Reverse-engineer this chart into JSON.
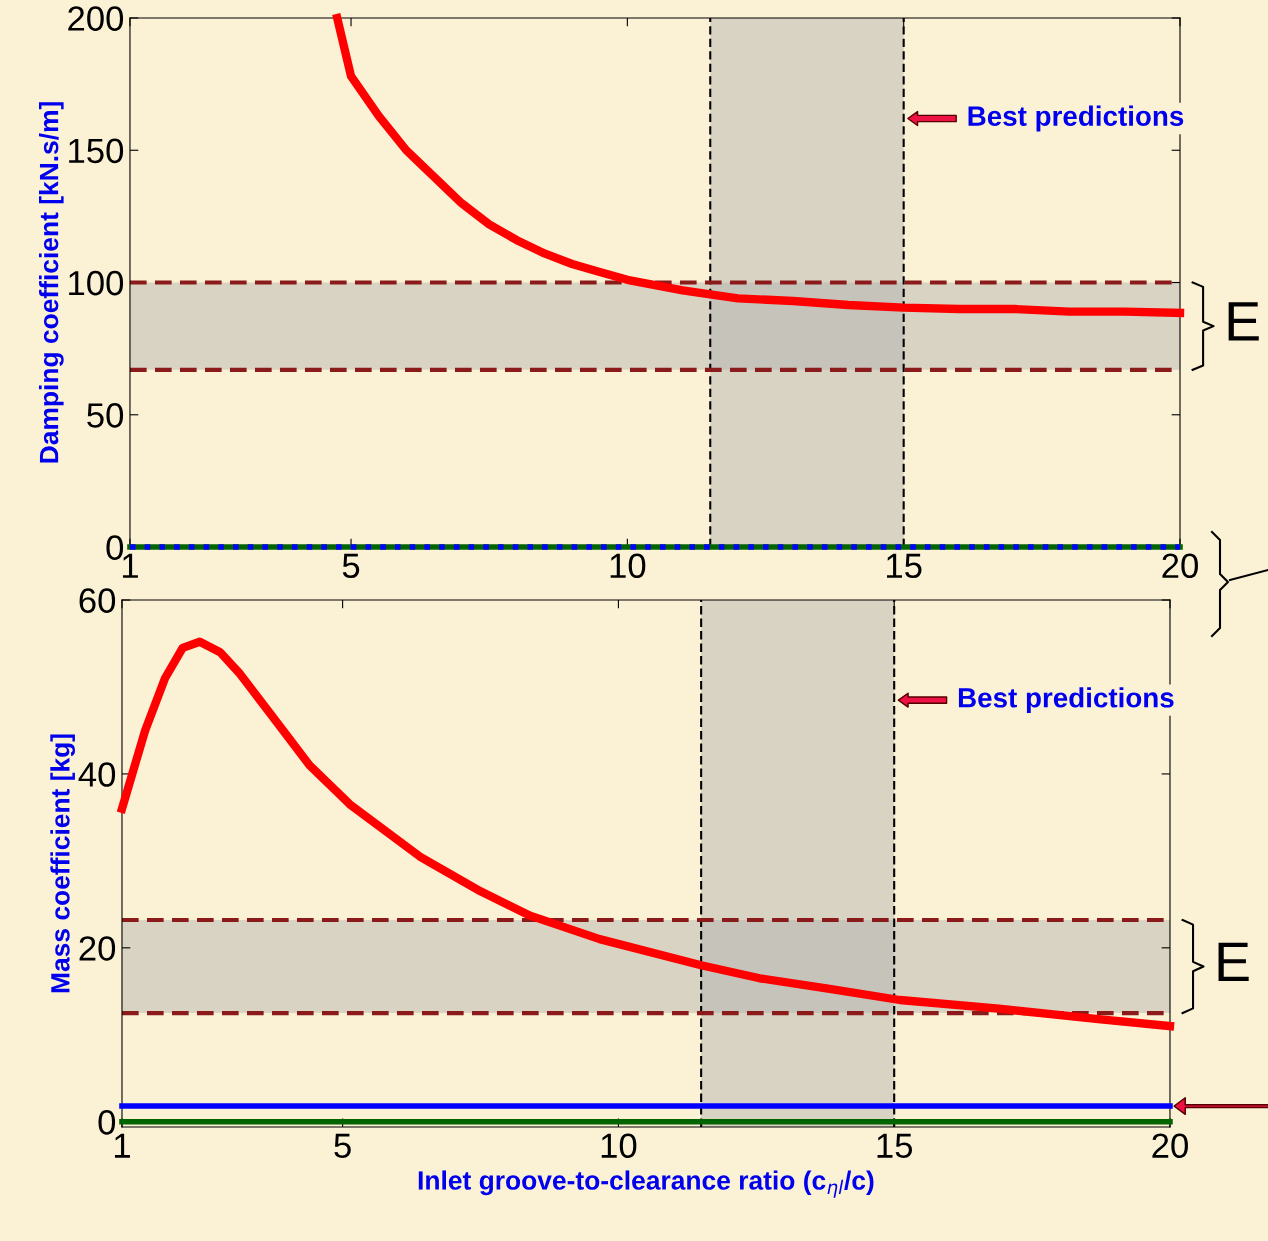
{
  "chart_data": [
    {
      "type": "line",
      "ylabel": "Damping coefficient [kN.s/m]",
      "xlim": [
        1,
        20
      ],
      "ylim": [
        0,
        200
      ],
      "xticks": [
        1,
        5,
        10,
        15,
        20
      ],
      "yticks": [
        0,
        50,
        100,
        150,
        200
      ],
      "grid": false,
      "legend": false,
      "series": [
        {
          "color": "#ff0000",
          "x": [
            4.75,
            5,
            5.5,
            6,
            6.5,
            7,
            7.5,
            8,
            8.5,
            9,
            9.5,
            10,
            11,
            12,
            13,
            14,
            15,
            16,
            17,
            18,
            19,
            20
          ],
          "values": [
            200,
            178,
            163,
            150,
            140,
            130,
            122,
            116,
            111,
            107,
            104,
            101,
            97,
            94,
            93,
            91.5,
            90.5,
            90,
            90,
            89,
            89,
            88.5
          ]
        },
        {
          "color": "#006400",
          "x": [
            1,
            20
          ],
          "values": [
            0,
            0
          ]
        },
        {
          "color": "#0000ff",
          "x": [
            1,
            20
          ],
          "values": [
            0,
            0
          ],
          "line_style": "dotted"
        }
      ],
      "bands": [
        {
          "axis": "x",
          "from": 11.5,
          "to": 15,
          "color": "#b0b0b0"
        },
        {
          "axis": "y",
          "from": 67,
          "to": 100,
          "color": "#b0b0b0"
        }
      ],
      "ref_lines": [
        {
          "axis": "x",
          "value": 11.5,
          "color": "#000000",
          "line_style": "dashed"
        },
        {
          "axis": "x",
          "value": 15,
          "color": "#000000",
          "line_style": "dashed"
        },
        {
          "axis": "y",
          "value": 67,
          "color": "#8b1a1a",
          "line_style": "dashed"
        },
        {
          "axis": "y",
          "value": 100,
          "color": "#8b1a1a",
          "line_style": "dashed"
        }
      ],
      "annotations": [
        "Best predictions",
        "E"
      ]
    },
    {
      "type": "line",
      "xlabel": "Inlet groove-to-clearance ratio (c$_{ηl}$/c)",
      "ylabel": "Mass coefficient [kg]",
      "xlim": [
        1,
        20
      ],
      "ylim": [
        -0.6,
        60
      ],
      "xticks": [
        1,
        5,
        10,
        15,
        20
      ],
      "yticks": [
        0,
        20,
        40,
        60
      ],
      "grid": false,
      "legend": false,
      "series": [
        {
          "color": "#ff0000",
          "x": [
            1,
            1.42,
            1.78,
            2.1,
            2.41,
            2.78,
            3.14,
            3.68,
            4.4,
            5.13,
            6.4,
            7.5,
            8.4,
            9.66,
            11.5,
            12.56,
            13.8,
            15.1,
            16.9,
            18.7,
            20
          ],
          "values": [
            36,
            45,
            51,
            54.5,
            55.2,
            54,
            51.5,
            47,
            41,
            36.5,
            30.5,
            26.5,
            23.7,
            21,
            18,
            16.5,
            15.3,
            14,
            13,
            11.8,
            11
          ]
        },
        {
          "color": "#006400",
          "x": [
            1,
            20
          ],
          "values": [
            0,
            0
          ]
        },
        {
          "color": "#0000ff",
          "x": [
            1,
            20
          ],
          "values": [
            1.8,
            1.8
          ]
        }
      ],
      "bands": [
        {
          "axis": "x",
          "from": 11.5,
          "to": 15,
          "color": "#b0b0b0"
        },
        {
          "axis": "y",
          "from": 12.5,
          "to": 23.2,
          "color": "#b0b0b0"
        }
      ],
      "ref_lines": [
        {
          "axis": "x",
          "value": 11.5,
          "color": "#000000",
          "line_style": "dashed"
        },
        {
          "axis": "x",
          "value": 15,
          "color": "#000000",
          "line_style": "dashed"
        },
        {
          "axis": "y",
          "value": 12.5,
          "color": "#8b1a1a",
          "line_style": "dashed"
        },
        {
          "axis": "y",
          "value": 23.2,
          "color": "#8b1a1a",
          "line_style": "dashed"
        }
      ],
      "annotations": [
        "Best predictions",
        "E"
      ]
    }
  ]
}
